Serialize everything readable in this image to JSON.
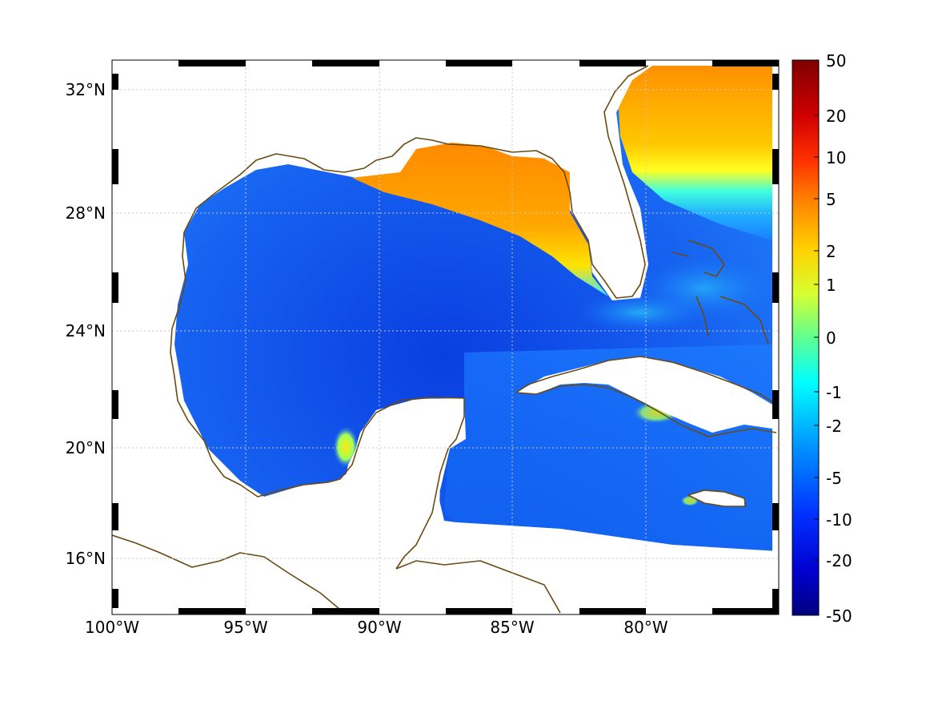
{
  "map": {
    "x_ticks": [
      "100°W",
      "95°W",
      "90°W",
      "85°W",
      "80°W"
    ],
    "y_ticks": [
      "32°N",
      "28°N",
      "24°N",
      "20°N",
      "16°N"
    ],
    "extent": {
      "lon_min": -100,
      "lon_max": -75,
      "lat_min": 14.2,
      "lat_max": 33
    }
  },
  "colorbar": {
    "labels": [
      "50",
      "20",
      "10",
      "5",
      "2",
      "1",
      "0",
      "-1",
      "-2",
      "-5",
      "-10",
      "-20",
      "-50"
    ],
    "colors": [
      "#7f0000",
      "#ff0000",
      "#ff8000",
      "#ffff00",
      "#80ff80",
      "#00ffff",
      "#0080ff",
      "#0000ff",
      "#00008f"
    ]
  },
  "colors": {
    "coastline": "#6b4a12",
    "grid": "#c8c8c8",
    "land": "#ffffff"
  }
}
